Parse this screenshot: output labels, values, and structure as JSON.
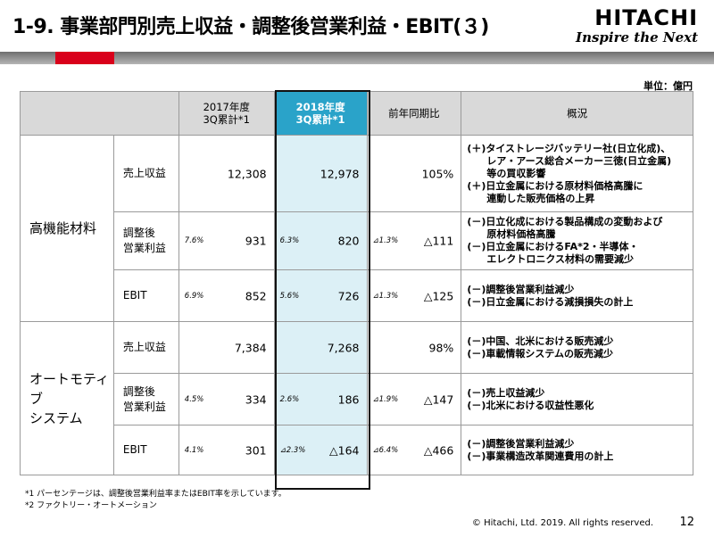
{
  "title": "1-9. 事業部門別売上収益・調整後営業利益・EBIT(３)",
  "logo": {
    "brand": "HITACHI",
    "tagline": "Inspire the Next"
  },
  "unit": "単位：億円",
  "headers": {
    "col_prev": "2017年度\n3Q累計*1",
    "col_curr": "2018年度\n3Q累計*1",
    "col_yoy": "前年同期比",
    "col_desc": "概況"
  },
  "segments": [
    {
      "name": "高機能材料",
      "rows": [
        {
          "item": "売上収益",
          "prev_pct": "",
          "prev": "12,308",
          "curr_pct": "",
          "curr": "12,978",
          "yoy_pct": "",
          "yoy": "105%",
          "desc": [
            "(＋)タイストレージバッテリー社(日立化成)、",
            "　　レア・アース総合メーカー三徳(日立金属)",
            "　　等の買収影響",
            "(＋)日立金属における原材料価格高騰に",
            "　　連動した販売価格の上昇"
          ]
        },
        {
          "item": "調整後\n営業利益",
          "prev_pct": "7.6%",
          "prev": "931",
          "curr_pct": "6.3%",
          "curr": "820",
          "yoy_pct": "⊿1.3%",
          "yoy": "△111",
          "desc": [
            "(－)日立化成における製品構成の変動および",
            "　　原材料価格高騰",
            "(－)日立金属におけるFA*2・半導体・",
            "　　エレクトロニクス材料の需要減少"
          ]
        },
        {
          "item": "EBIT",
          "prev_pct": "6.9%",
          "prev": "852",
          "curr_pct": "5.6%",
          "curr": "726",
          "yoy_pct": "⊿1.3%",
          "yoy": "△125",
          "desc": [
            "(－)調整後営業利益減少",
            "(－)日立金属における減損損失の計上"
          ]
        }
      ]
    },
    {
      "name": "オートモティブ\nシステム",
      "rows": [
        {
          "item": "売上収益",
          "prev_pct": "",
          "prev": "7,384",
          "curr_pct": "",
          "curr": "7,268",
          "yoy_pct": "",
          "yoy": "98%",
          "desc": [
            "(－)中国、北米における販売減少",
            "(－)車載情報システムの販売減少"
          ]
        },
        {
          "item": "調整後\n営業利益",
          "prev_pct": "4.5%",
          "prev": "334",
          "curr_pct": "2.6%",
          "curr": "186",
          "yoy_pct": "⊿1.9%",
          "yoy": "△147",
          "desc": [
            "(－)売上収益減少",
            "(－)北米における収益性悪化"
          ]
        },
        {
          "item": "EBIT",
          "prev_pct": "4.1%",
          "prev": "301",
          "curr_pct": "⊿2.3%",
          "curr": "△164",
          "yoy_pct": "⊿6.4%",
          "yoy": "△466",
          "desc": [
            "(－)調整後営業利益減少",
            "(－)事業構造改革関連費用の計上"
          ]
        }
      ]
    }
  ],
  "notes": [
    "*1 パーセンテージは、調整後営業利益率またはEBIT率を示しています。",
    "*2 ファクトリー・オートメーション"
  ],
  "footer": "© Hitachi, Ltd. 2019. All rights reserved.",
  "page_number": "12",
  "colors": {
    "accent_red": "#d9001b",
    "highlight_header": "#2aa3c9",
    "highlight_cell": "#dcf0f6"
  }
}
